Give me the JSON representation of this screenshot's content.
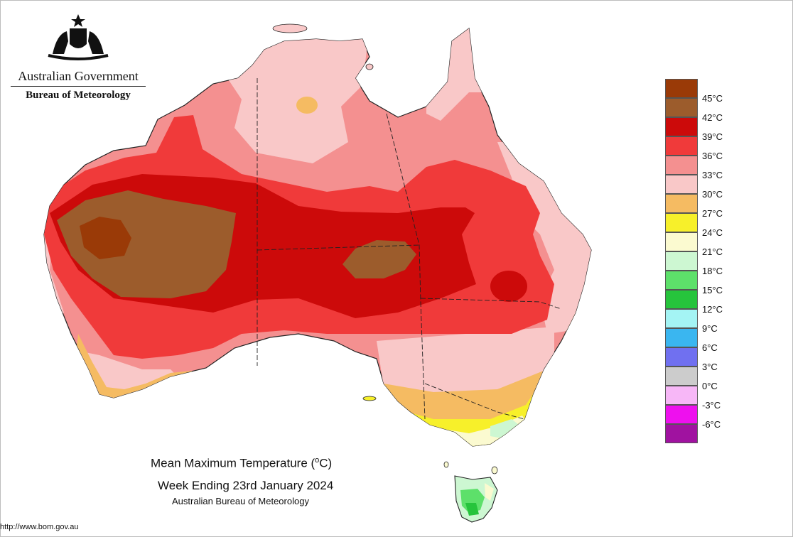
{
  "header": {
    "agency": "Australian Government",
    "bureau": "Bureau of Meteorology"
  },
  "title": {
    "line1_prefix": "Mean Maximum Temperature (",
    "line1_degree": "o",
    "line1_suffix": "C)",
    "line2": "Week Ending 23rd January 2024",
    "line3": "Australian Bureau of Meteorology"
  },
  "footer": {
    "url": "http://www.bom.gov.au"
  },
  "legend": [
    {
      "label": "45°C",
      "color": "#9a3a07"
    },
    {
      "label": "42°C",
      "color": "#9c5c2c"
    },
    {
      "label": "39°C",
      "color": "#cc0a0a"
    },
    {
      "label": "36°C",
      "color": "#f03a3a"
    },
    {
      "label": "33°C",
      "color": "#f49090"
    },
    {
      "label": "30°C",
      "color": "#f9c8c8"
    },
    {
      "label": "27°C",
      "color": "#f5bb62"
    },
    {
      "label": "24°C",
      "color": "#f7f02a"
    },
    {
      "label": "21°C",
      "color": "#fbfad0"
    },
    {
      "label": "18°C",
      "color": "#cdf7d2"
    },
    {
      "label": "15°C",
      "color": "#5de06a"
    },
    {
      "label": "12°C",
      "color": "#26c43c"
    },
    {
      "label": "9°C",
      "color": "#a4f4f4"
    },
    {
      "label": "6°C",
      "color": "#3ab6f0"
    },
    {
      "label": "3°C",
      "color": "#7070f0"
    },
    {
      "label": "0°C",
      "color": "#cccccc"
    },
    {
      "label": "-3°C",
      "color": "#f7b7f7"
    },
    {
      "label": "-6°C",
      "color": "#ee10ee"
    },
    {
      "label": "",
      "color": "#a012a0"
    }
  ]
}
